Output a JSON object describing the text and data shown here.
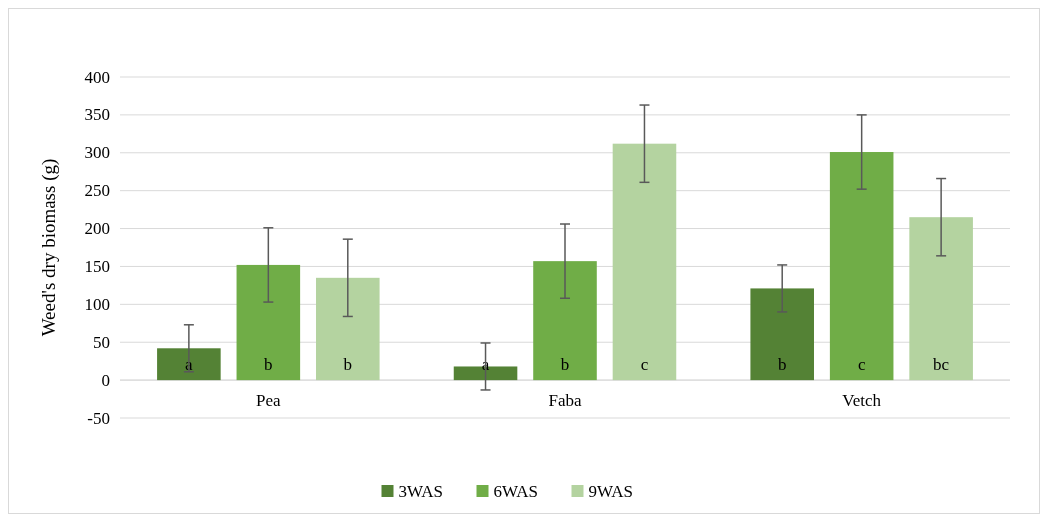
{
  "chart_data": {
    "type": "bar",
    "ylabel": "Weed's dry biomass (g)",
    "categories": [
      "Pea",
      "Faba",
      "Vetch"
    ],
    "series": [
      {
        "name": "3WAS",
        "color": "#548235",
        "values": [
          42,
          18,
          121
        ],
        "errors": [
          31,
          31,
          31
        ],
        "value_labels": [
          "a",
          "a",
          "b"
        ]
      },
      {
        "name": "6WAS",
        "color": "#70ad47",
        "values": [
          152,
          157,
          301
        ],
        "errors": [
          49,
          49,
          49
        ],
        "value_labels": [
          "b",
          "b",
          "c"
        ]
      },
      {
        "name": "9WAS",
        "color": "#b4d3a0",
        "values": [
          135,
          312,
          215
        ],
        "errors": [
          51,
          51,
          51
        ],
        "value_labels": [
          "b",
          "c",
          "bc"
        ]
      }
    ],
    "ylim": [
      -50,
      400
    ],
    "yticks": [
      -50,
      0,
      50,
      100,
      150,
      200,
      250,
      300,
      350,
      400
    ],
    "grid": "y",
    "legend": "bottom"
  }
}
